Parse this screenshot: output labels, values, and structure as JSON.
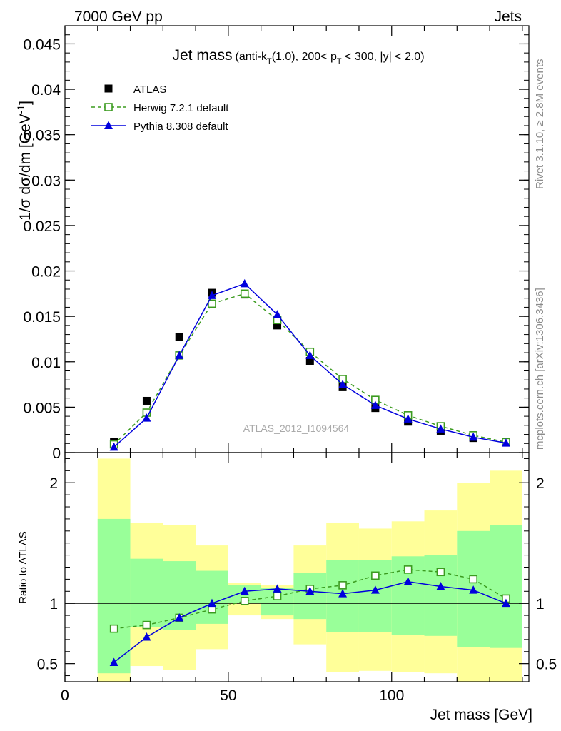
{
  "header": {
    "left": "7000 GeV pp",
    "right": "Jets"
  },
  "side_labels": {
    "rivet": "Rivet 3.1.10, ≥ 2.8M events",
    "mcplots": "mcplots.cern.ch [arXiv:1306.3436]"
  },
  "watermark": "ATLAS_2012_I1094564",
  "chart_data": [
    {
      "type": "scatter",
      "panel": "main",
      "title": {
        "main": "Jet mass",
        "detail": "(anti-k",
        "sub_T1": "T",
        "detail2": "(1.0), 200< p",
        "sub_T2": "T",
        "detail3": " < 300, |y| < 2.0)"
      },
      "ylabel": "1/σ dσ/dm [GeV",
      "ylabel_sup": "-1",
      "ylabel_close": "]",
      "xlim": [
        0,
        142
      ],
      "ylim": [
        0,
        0.047
      ],
      "x_ticks": [
        0,
        50,
        100
      ],
      "y_ticks": [
        {
          "v": 0,
          "label": "0"
        },
        {
          "v": 0.005,
          "label": "0.005"
        },
        {
          "v": 0.01,
          "label": "0.01"
        },
        {
          "v": 0.015,
          "label": "0.015"
        },
        {
          "v": 0.02,
          "label": "0.02"
        },
        {
          "v": 0.025,
          "label": "0.025"
        },
        {
          "v": 0.03,
          "label": "0.03"
        },
        {
          "v": 0.035,
          "label": "0.035"
        },
        {
          "v": 0.04,
          "label": "0.04"
        },
        {
          "v": 0.045,
          "label": "0.045"
        }
      ],
      "legend_position": "top-left",
      "x": [
        15,
        25,
        35,
        45,
        55,
        65,
        75,
        85,
        95,
        105,
        115,
        125,
        135
      ],
      "series": [
        {
          "name": "ATLAS",
          "marker": "filled-square",
          "color": "#000000",
          "values": [
            0.00115,
            0.0057,
            0.0127,
            0.0176,
            0.0174,
            0.014,
            0.0101,
            0.0072,
            0.0049,
            0.0034,
            0.0024,
            0.0016,
            0.0011
          ]
        },
        {
          "name": "Herwig 7.2.1 default",
          "marker": "open-square",
          "line": "dashed",
          "color": "#3b9b1f",
          "values": [
            0.0009,
            0.0044,
            0.0107,
            0.0164,
            0.0175,
            0.0146,
            0.0111,
            0.0081,
            0.0058,
            0.0041,
            0.0029,
            0.0019,
            0.00115
          ]
        },
        {
          "name": "Pythia 8.308 default",
          "marker": "filled-triangle",
          "line": "solid",
          "color": "#0000dd",
          "values": [
            0.0006,
            0.0038,
            0.0107,
            0.0173,
            0.0186,
            0.0152,
            0.0107,
            0.0075,
            0.0052,
            0.0037,
            0.0026,
            0.0017,
            0.00105
          ]
        }
      ]
    },
    {
      "type": "scatter",
      "panel": "ratio",
      "ylabel": "Ratio to ATLAS",
      "xlabel": "Jet mass [GeV]",
      "xlim": [
        0,
        142
      ],
      "ylim": [
        0.35,
        2.25
      ],
      "x_ticks": [
        {
          "v": 0,
          "label": "0"
        },
        {
          "v": 50,
          "label": "50"
        },
        {
          "v": 100,
          "label": "100"
        }
      ],
      "y_ticks": [
        {
          "v": 0.5,
          "label": "0.5"
        },
        {
          "v": 1,
          "label": "1"
        },
        {
          "v": 2,
          "label": "2"
        }
      ],
      "bands": {
        "bin_edges": [
          10,
          20,
          30,
          40,
          50,
          60,
          70,
          80,
          90,
          100,
          110,
          120,
          130,
          140
        ],
        "stat_low": [
          0.42,
          0.8,
          0.78,
          0.83,
          1.0,
          0.9,
          0.87,
          0.76,
          0.76,
          0.74,
          0.73,
          0.64,
          0.63
        ],
        "stat_high": [
          1.7,
          1.37,
          1.35,
          1.27,
          1.15,
          1.13,
          1.25,
          1.36,
          1.36,
          1.39,
          1.4,
          1.6,
          1.65
        ],
        "tot_low": [
          0.3,
          0.48,
          0.45,
          0.62,
          0.9,
          0.87,
          0.66,
          0.43,
          0.44,
          0.43,
          0.42,
          0.35,
          0.35
        ],
        "tot_high": [
          2.2,
          1.67,
          1.65,
          1.48,
          1.17,
          1.15,
          1.48,
          1.67,
          1.62,
          1.68,
          1.77,
          2.0,
          2.1
        ],
        "stat_color": "#99ff99",
        "tot_color": "#ffff99"
      },
      "x": [
        15,
        25,
        35,
        45,
        55,
        65,
        75,
        85,
        95,
        105,
        115,
        125,
        135
      ],
      "series": [
        {
          "name": "Herwig 7.2.1 default",
          "marker": "open-square",
          "line": "dashed",
          "color": "#3b9b1f",
          "values": [
            0.79,
            0.82,
            0.88,
            0.95,
            1.02,
            1.06,
            1.12,
            1.15,
            1.23,
            1.28,
            1.26,
            1.2,
            1.04
          ]
        },
        {
          "name": "Pythia 8.308 default",
          "marker": "filled-triangle",
          "line": "solid",
          "color": "#0000dd",
          "values": [
            0.51,
            0.72,
            0.88,
            1.0,
            1.1,
            1.12,
            1.1,
            1.08,
            1.11,
            1.18,
            1.14,
            1.11,
            1.0
          ]
        }
      ]
    }
  ]
}
